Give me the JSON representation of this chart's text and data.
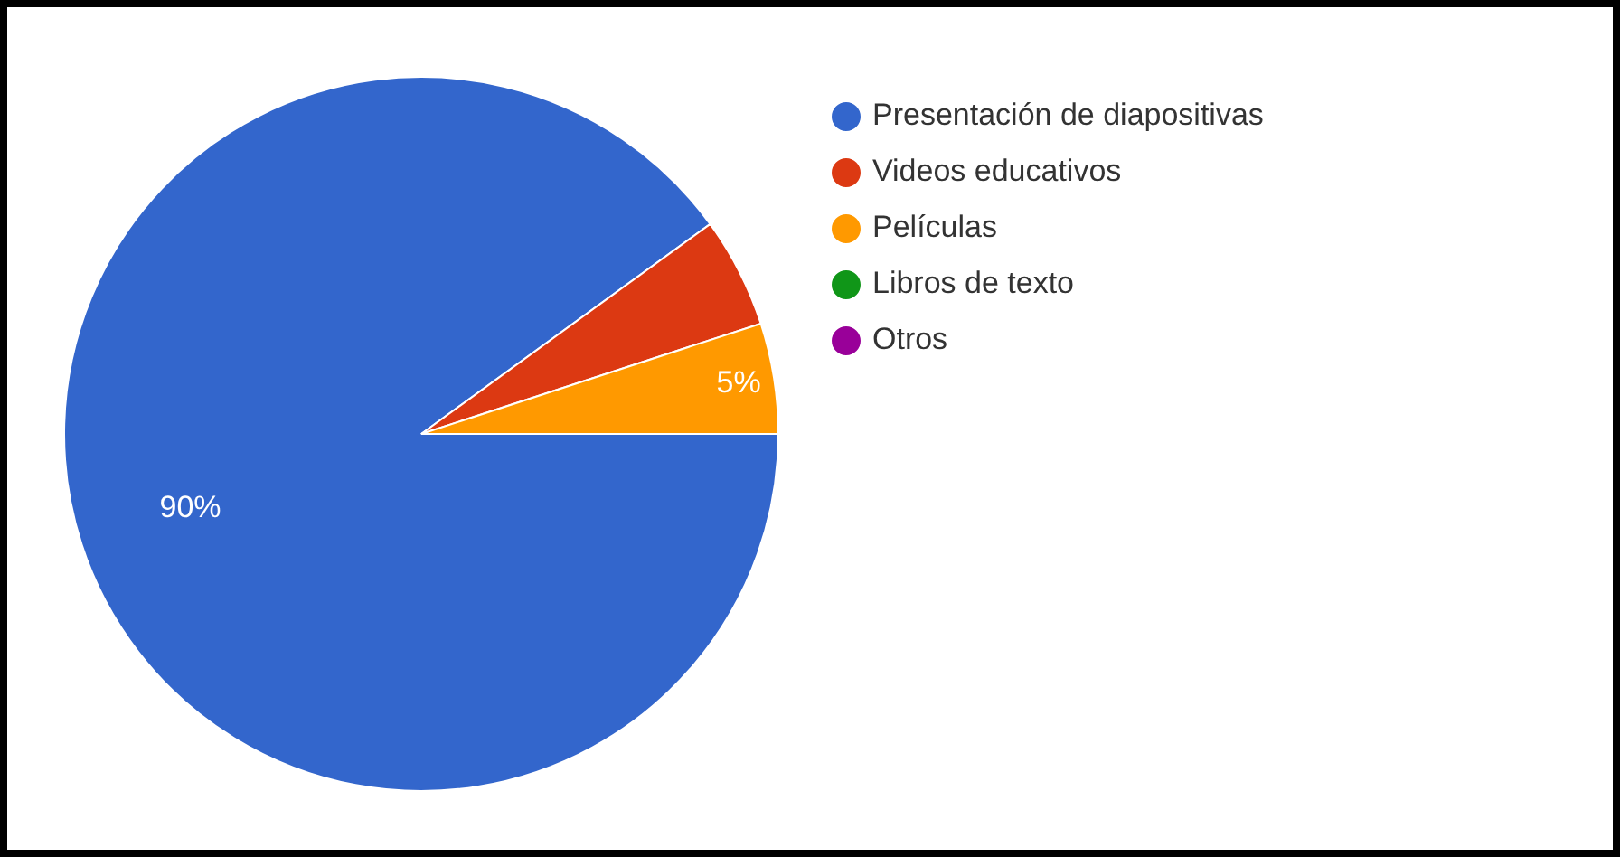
{
  "chart_data": {
    "type": "pie",
    "categories": [
      "Presentación de diapositivas",
      "Videos educativos",
      "Películas",
      "Libros de texto",
      "Otros"
    ],
    "values": [
      90,
      5,
      5,
      0,
      0
    ],
    "value_labels": [
      "90%",
      null,
      "5%",
      null,
      null
    ],
    "colors": [
      "#3366cc",
      "#dc3912",
      "#ff9900",
      "#109618",
      "#990099"
    ],
    "legend": "top right"
  }
}
